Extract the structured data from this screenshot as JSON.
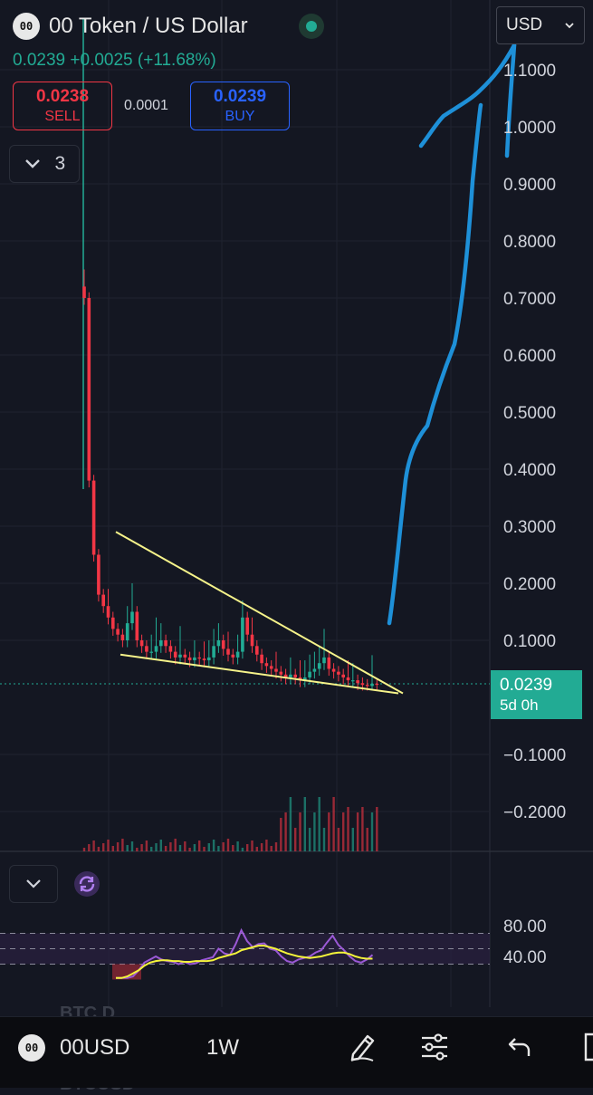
{
  "header": {
    "logo_text": "00",
    "title": "00 Token / US Dollar",
    "price": "0.0239",
    "change": "+0.0025",
    "change_pct": "(+11.68%)",
    "status_color": "#22ab94"
  },
  "trade": {
    "sell_price": "0.0238",
    "sell_label": "SELL",
    "spread": "0.0001",
    "buy_price": "0.0239",
    "buy_label": "BUY"
  },
  "indicators_toggle": {
    "count": "3"
  },
  "currency": {
    "selected": "USD"
  },
  "last_price": {
    "value": "0.0239",
    "countdown": "5d 0h",
    "color": "#22ab94"
  },
  "watermarks": {
    "line1": "BTC.D",
    "line2": "BTCUSD"
  },
  "bottom_bar": {
    "symbol": "00USD",
    "timeframe": "1W",
    "icons": [
      "draw-pen-icon",
      "settings-sliders-icon",
      "undo-icon",
      "fullscreen-icon"
    ]
  },
  "colors": {
    "up": "#22ab94",
    "down": "#f23645",
    "rsi": "#9b59d6",
    "rsi_ma": "#f5f53a",
    "pattern": "#f6f38a",
    "annotation": "#1e90d8"
  },
  "chart_data": [
    {
      "type": "candlestick",
      "title": "00 Token / US Dollar",
      "timeframe": "1W",
      "ylim": [
        -0.25,
        1.2
      ],
      "yticks": [
        "1.1000",
        "1.0000",
        "0.9000",
        "0.8000",
        "0.7000",
        "0.6000",
        "0.5000",
        "0.4000",
        "0.3000",
        "0.2000",
        "0.1000",
        "−0.1000",
        "−0.2000"
      ],
      "ytick_values": [
        1.1,
        1.0,
        0.9,
        0.8,
        0.7,
        0.6,
        0.5,
        0.4,
        0.3,
        0.2,
        0.1,
        -0.1,
        -0.2
      ],
      "close": [
        0.7,
        0.38,
        0.25,
        0.18,
        0.16,
        0.14,
        0.12,
        0.11,
        0.1,
        0.13,
        0.15,
        0.1,
        0.09,
        0.08,
        0.08,
        0.09,
        0.1,
        0.09,
        0.08,
        0.07,
        0.075,
        0.07,
        0.065,
        0.07,
        0.068,
        0.065,
        0.07,
        0.09,
        0.1,
        0.085,
        0.075,
        0.07,
        0.08,
        0.14,
        0.11,
        0.09,
        0.075,
        0.06,
        0.055,
        0.05,
        0.045,
        0.04,
        0.035,
        0.04,
        0.035,
        0.03,
        0.035,
        0.045,
        0.05,
        0.06,
        0.07,
        0.05,
        0.045,
        0.04,
        0.035,
        0.03,
        0.03,
        0.025,
        0.022,
        0.02,
        0.024,
        0.0239
      ],
      "last_value": 0.0239,
      "grid": true,
      "annotations": [
        {
          "type": "trendline",
          "from": [
            0.29,
            "week 6"
          ],
          "to": [
            0.015,
            "week 60"
          ]
        },
        {
          "type": "trendline",
          "from": [
            0.075,
            "week 6"
          ],
          "to": [
            0.015,
            "week 60"
          ]
        }
      ]
    },
    {
      "type": "line",
      "name": "RSI",
      "yticks": [
        "80.00",
        "40.00"
      ],
      "ytick_values": [
        80,
        40
      ],
      "bands": [
        30,
        50,
        70
      ],
      "rsi": [
        12,
        12,
        12,
        14,
        22,
        32,
        36,
        40,
        36,
        34,
        33,
        30,
        33,
        30,
        31,
        35,
        37,
        39,
        50,
        44,
        42,
        56,
        74,
        60,
        52,
        56,
        57,
        50,
        48,
        40,
        34,
        32,
        36,
        38,
        40,
        45,
        48,
        58,
        67,
        55,
        48,
        40,
        34,
        32,
        36,
        42
      ],
      "ma": [
        12,
        12,
        14,
        18,
        22,
        28,
        32,
        34,
        35,
        35,
        34,
        34,
        33,
        33,
        34,
        34,
        34,
        35,
        38,
        40,
        42,
        44,
        48,
        50,
        52,
        54,
        54,
        52,
        50,
        47,
        44,
        42,
        40,
        39,
        38,
        39,
        40,
        42,
        44,
        45,
        45,
        43,
        40,
        38,
        37,
        37
      ]
    }
  ]
}
